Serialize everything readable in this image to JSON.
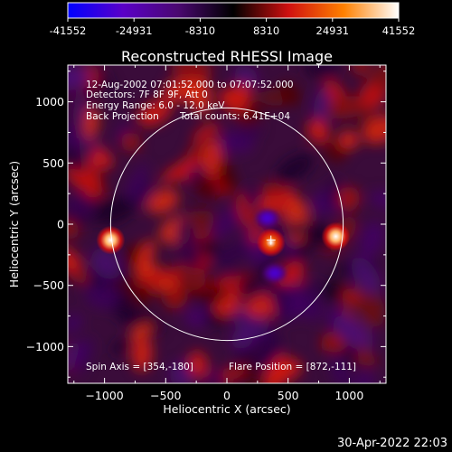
{
  "colorbar": {
    "labels": [
      "-41552",
      "-24931",
      "-8310",
      "8310",
      "24931",
      "41552"
    ],
    "min": -41552,
    "max": 41552,
    "colors": [
      "#0000ff",
      "#5a00c8",
      "#4a0870",
      "#000000",
      "#d01010",
      "#ff8000",
      "#ffffff"
    ]
  },
  "chart_data": {
    "type": "heatmap",
    "title": "Reconstructed RHESSI Image",
    "xlabel": "Heliocentric X (arcsec)",
    "ylabel": "Heliocentric Y (arcsec)",
    "xlim": [
      -1300,
      1300
    ],
    "ylim": [
      -1300,
      1300
    ],
    "x_ticks": [
      -1000,
      -500,
      0,
      500,
      1000
    ],
    "y_ticks": [
      -1000,
      -500,
      0,
      500,
      1000
    ],
    "x_tick_labels": [
      "−1000",
      "−500",
      "0",
      "500",
      "1000"
    ],
    "y_tick_labels": [
      "−1000",
      "−500",
      "0",
      "500",
      "1000"
    ],
    "solar_limb_radius": 950,
    "sources": [
      {
        "x": -950,
        "y": -130,
        "value": 41552
      },
      {
        "x": 360,
        "y": -150,
        "value": 28000
      },
      {
        "x": 890,
        "y": -100,
        "value": 41552
      }
    ],
    "negative_lobes": [
      {
        "x": 330,
        "y": 50,
        "value": -30000
      },
      {
        "x": 390,
        "y": -400,
        "value": -30000
      }
    ],
    "flare_marker": {
      "x": 360,
      "y": -130
    },
    "annotations": {
      "time_range": "12-Aug-2002 07:01:52.000 to 07:07:52.000",
      "detectors": "Detectors: 7F 8F 9F, Att 0",
      "energy": "Energy Range: 6.0 - 12.0 keV",
      "method": "Back Projection",
      "counts": "Total counts: 6.41E+04",
      "spin_axis": "Spin Axis = [354,-180]",
      "flare_position": "Flare Position = [872,-111]"
    }
  },
  "footer": {
    "timestamp": "30-Apr-2022 22:03"
  }
}
